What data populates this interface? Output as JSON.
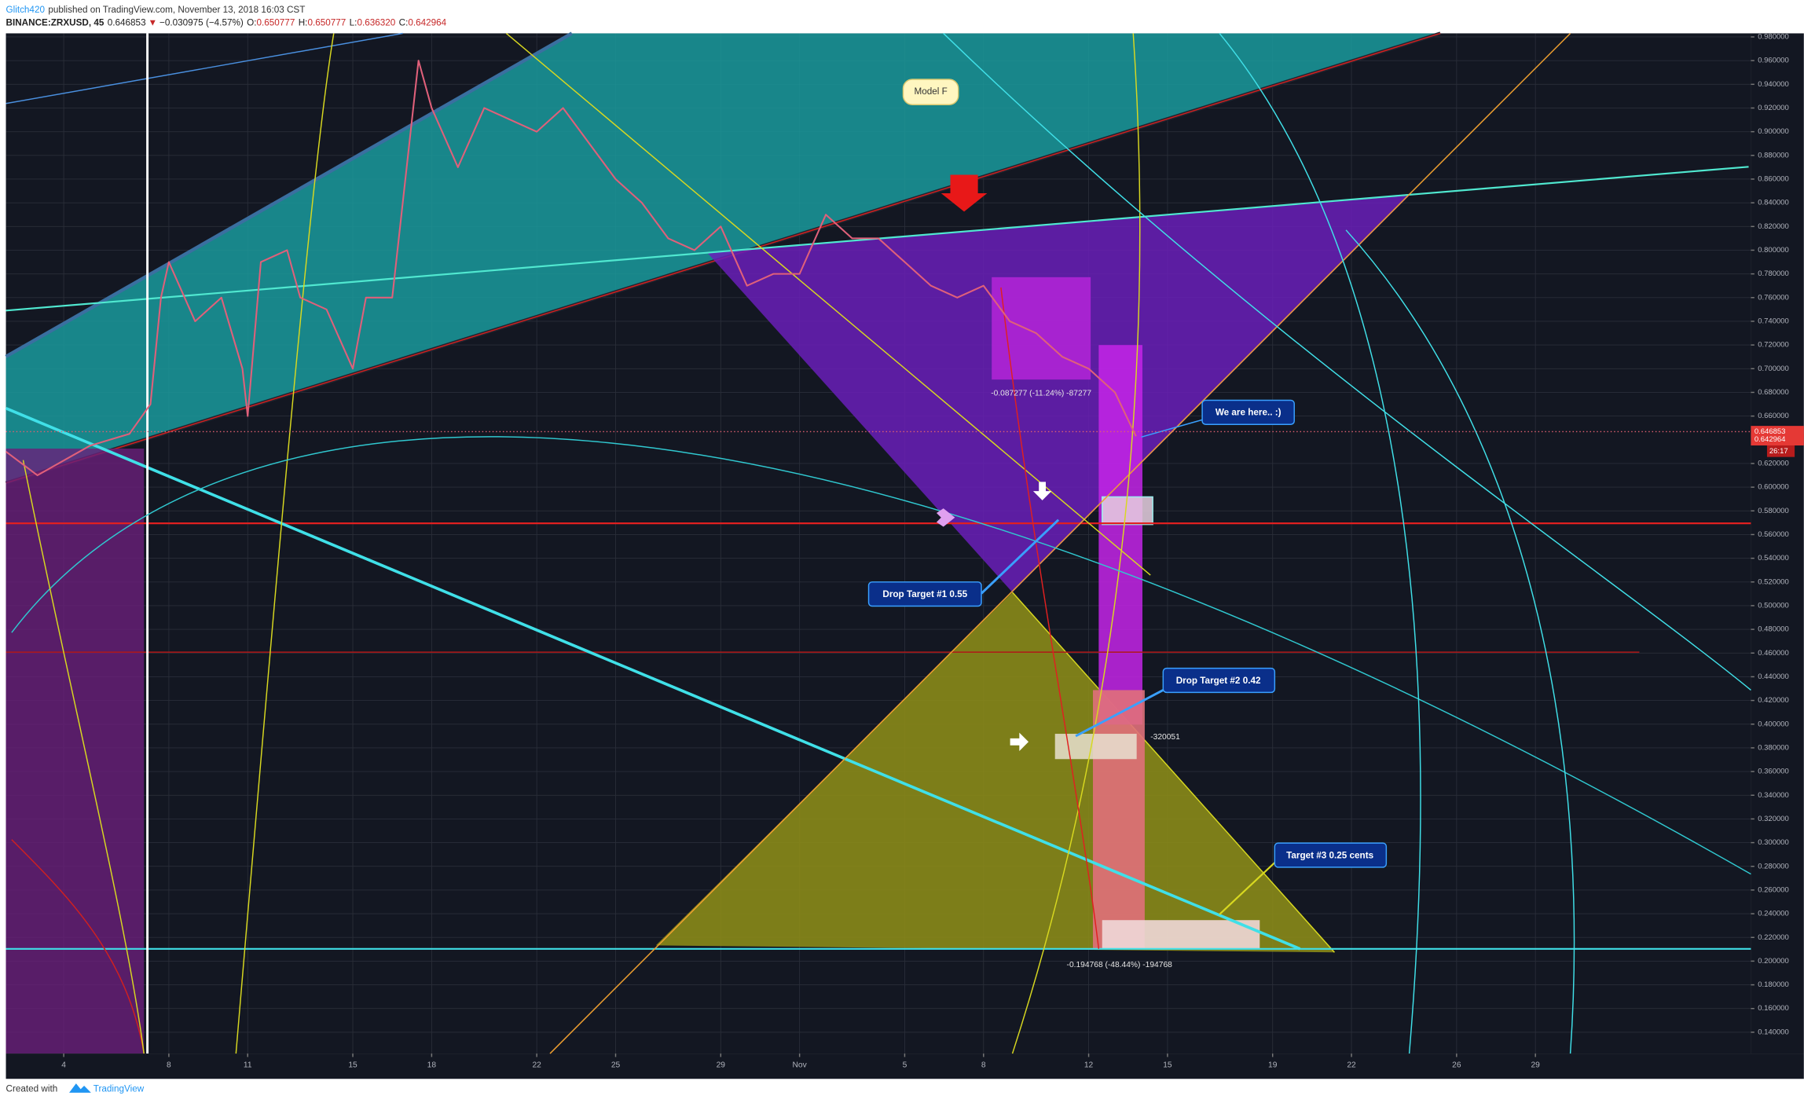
{
  "header": {
    "author": "Glitch420",
    "published": "published on TradingView.com, November 13, 2018 16:03 CST",
    "symbol": "BINANCE:ZRXUSD, 45",
    "last": "0.646853",
    "arrow": "▼",
    "change": "−0.030975 (−4.57%)",
    "open_label": "O:",
    "open": "0.650777",
    "high_label": "H:",
    "high": "0.650777",
    "low_label": "L:",
    "low": "0.636320",
    "close_label": "C:",
    "close": "0.642964"
  },
  "footer": {
    "created": "Created with",
    "brand": "TradingView"
  },
  "chart_data": {
    "type": "line",
    "color": "#e0607a",
    "grid": true,
    "x": [
      1.8,
      3,
      5,
      6.5,
      7.3,
      7.7,
      8,
      9,
      10,
      10.8,
      11,
      11.5,
      12.5,
      13,
      14,
      15,
      15.5,
      16.5,
      17.2,
      17.5,
      18,
      19,
      20,
      21,
      22,
      23,
      24,
      25,
      26,
      27,
      28,
      29,
      30,
      31,
      32,
      33,
      34,
      35,
      36,
      37,
      38,
      39,
      40,
      41,
      42,
      43,
      44,
      44.8
    ],
    "values": [
      0.63,
      0.61,
      0.635,
      0.645,
      0.67,
      0.76,
      0.79,
      0.74,
      0.76,
      0.7,
      0.66,
      0.79,
      0.8,
      0.76,
      0.75,
      0.7,
      0.76,
      0.76,
      0.9,
      0.96,
      0.92,
      0.87,
      0.92,
      0.91,
      0.9,
      0.92,
      0.89,
      0.86,
      0.84,
      0.81,
      0.8,
      0.82,
      0.77,
      0.78,
      0.78,
      0.83,
      0.81,
      0.81,
      0.79,
      0.77,
      0.76,
      0.77,
      0.74,
      0.73,
      0.71,
      0.7,
      0.68,
      0.643
    ],
    "xlim": [
      1.8,
      68.2
    ],
    "xticks": [
      4,
      8,
      11,
      15,
      18,
      22,
      25,
      29,
      {
        "value": 32,
        "label": "Nov"
      },
      {
        "value": 36,
        "label": "5"
      },
      {
        "value": 39,
        "label": "8"
      },
      {
        "value": 43,
        "label": "12"
      },
      {
        "value": 46,
        "label": "15"
      },
      {
        "value": 50,
        "label": "19"
      },
      {
        "value": 53,
        "label": "22"
      },
      {
        "value": 57,
        "label": "26"
      },
      {
        "value": 60,
        "label": "29"
      }
    ],
    "ylim": [
      0.122,
      0.983
    ],
    "yticks": [
      {
        "value": 0.98,
        "label": "0.980000"
      },
      {
        "value": 0.96,
        "label": "0.960000"
      },
      {
        "value": 0.94,
        "label": "0.940000"
      },
      {
        "value": 0.92,
        "label": "0.920000"
      },
      {
        "value": 0.9,
        "label": "0.900000"
      },
      {
        "value": 0.88,
        "label": "0.880000"
      },
      {
        "value": 0.86,
        "label": "0.860000"
      },
      {
        "value": 0.84,
        "label": "0.840000"
      },
      {
        "value": 0.82,
        "label": "0.820000"
      },
      {
        "value": 0.8,
        "label": "0.800000"
      },
      {
        "value": 0.78,
        "label": "0.780000"
      },
      {
        "value": 0.76,
        "label": "0.760000"
      },
      {
        "value": 0.74,
        "label": "0.740000"
      },
      {
        "value": 0.72,
        "label": "0.720000"
      },
      {
        "value": 0.7,
        "label": "0.700000"
      },
      {
        "value": 0.68,
        "label": "0.680000"
      },
      {
        "value": 0.66,
        "label": "0.660000"
      },
      {
        "value": 0.62,
        "label": "0.620000"
      },
      {
        "value": 0.6,
        "label": "0.600000"
      },
      {
        "value": 0.58,
        "label": "0.580000"
      },
      {
        "value": 0.56,
        "label": "0.560000"
      },
      {
        "value": 0.54,
        "label": "0.540000"
      },
      {
        "value": 0.52,
        "label": "0.520000"
      },
      {
        "value": 0.5,
        "label": "0.500000"
      },
      {
        "value": 0.48,
        "label": "0.480000"
      },
      {
        "value": 0.46,
        "label": "0.460000"
      },
      {
        "value": 0.44,
        "label": "0.440000"
      },
      {
        "value": 0.42,
        "label": "0.420000"
      },
      {
        "value": 0.4,
        "label": "0.400000"
      },
      {
        "value": 0.38,
        "label": "0.380000"
      },
      {
        "value": 0.36,
        "label": "0.360000"
      },
      {
        "value": 0.34,
        "label": "0.340000"
      },
      {
        "value": 0.32,
        "label": "0.320000"
      },
      {
        "value": 0.3,
        "label": "0.300000"
      },
      {
        "value": 0.28,
        "label": "0.280000"
      },
      {
        "value": 0.26,
        "label": "0.260000"
      },
      {
        "value": 0.24,
        "label": "0.240000"
      },
      {
        "value": 0.22,
        "label": "0.220000"
      },
      {
        "value": 0.2,
        "label": "0.200000"
      },
      {
        "value": 0.18,
        "label": "0.180000"
      },
      {
        "value": 0.16,
        "label": "0.160000"
      },
      {
        "value": 0.14,
        "label": "0.140000"
      }
    ],
    "price_labels": [
      0.646853,
      0.642964
    ],
    "countdown": "26:17",
    "annotations": [
      "Model F",
      "We are here.. :)",
      "Drop Target #1 0.55",
      "Drop Target #2 0.42",
      "Target #3 0.25 cents",
      "-0.087277 (-11.24%) -87277",
      "-320051",
      "-0.194768 (-48.44%) -194768"
    ]
  }
}
